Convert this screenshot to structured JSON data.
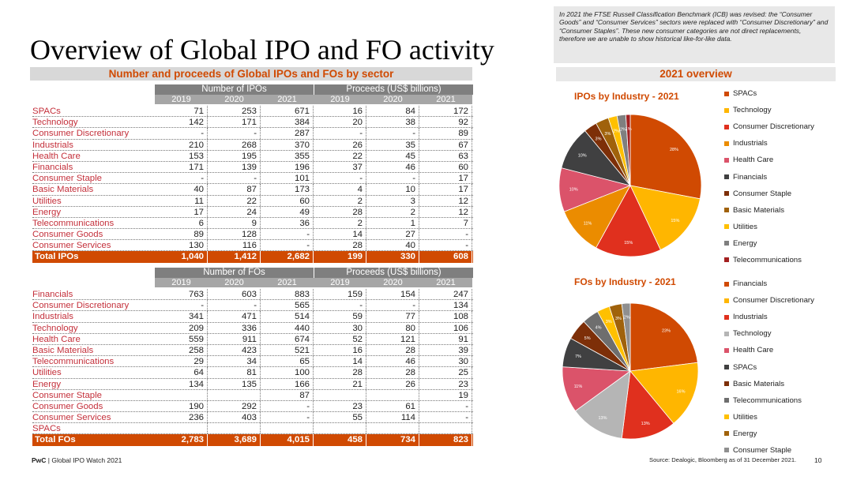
{
  "title": "Overview of Global IPO and FO activity",
  "note": "In 2021 the FTSE Russell Classification Benchmark (ICB) was revised: the “Consumer Goods” and “Consumer Services” sectors were replaced with “Consumer Discretionary” and “Consumer Staples”. These new consumer categories are not direct replacements, therefore we are unable to show historical like-for-like data.",
  "section_header": "Number and proceeds of Global IPOs and FOs by sector",
  "overview_header": "2021 overview",
  "years": [
    "2019",
    "2020",
    "2021"
  ],
  "ipo_table": {
    "group_count": "Number of IPOs",
    "group_proceeds": "Proceeds (US$ billions)",
    "rows": [
      {
        "label": "SPACs",
        "v": [
          "71",
          "253",
          "671",
          "16",
          "84",
          "172"
        ]
      },
      {
        "label": "Technology",
        "v": [
          "142",
          "171",
          "384",
          "20",
          "38",
          "92"
        ]
      },
      {
        "label": "Consumer Discretionary",
        "v": [
          "-",
          "-",
          "287",
          "-",
          "-",
          "89"
        ]
      },
      {
        "label": "Industrials",
        "v": [
          "210",
          "268",
          "370",
          "26",
          "35",
          "67"
        ]
      },
      {
        "label": "Health Care",
        "v": [
          "153",
          "195",
          "355",
          "22",
          "45",
          "63"
        ]
      },
      {
        "label": "Financials",
        "v": [
          "171",
          "139",
          "196",
          "37",
          "46",
          "60"
        ]
      },
      {
        "label": "Consumer Staple",
        "v": [
          "-",
          "-",
          "101",
          "-",
          "-",
          "17"
        ]
      },
      {
        "label": "Basic Materials",
        "v": [
          "40",
          "87",
          "173",
          "4",
          "10",
          "17"
        ]
      },
      {
        "label": "Utilities",
        "v": [
          "11",
          "22",
          "60",
          "2",
          "3",
          "12"
        ]
      },
      {
        "label": "Energy",
        "v": [
          "17",
          "24",
          "49",
          "28",
          "2",
          "12"
        ]
      },
      {
        "label": "Telecommunications",
        "v": [
          "6",
          "9",
          "36",
          "2",
          "1",
          "7"
        ]
      },
      {
        "label": "Consumer Goods",
        "v": [
          "89",
          "128",
          "-",
          "14",
          "27",
          "-"
        ]
      },
      {
        "label": "Consumer Services",
        "v": [
          "130",
          "116",
          "-",
          "28",
          "40",
          "-"
        ]
      }
    ],
    "total": {
      "label": "Total IPOs",
      "v": [
        "1,040",
        "1,412",
        "2,682",
        "199",
        "330",
        "608"
      ]
    }
  },
  "fo_table": {
    "group_count": "Number of FOs",
    "group_proceeds": "Proceeds (US$ billions)",
    "rows": [
      {
        "label": "Financials",
        "v": [
          "763",
          "603",
          "883",
          "159",
          "154",
          "247"
        ]
      },
      {
        "label": "Consumer Discretionary",
        "v": [
          "-",
          "-",
          "565",
          "-",
          "-",
          "134"
        ]
      },
      {
        "label": "Industrials",
        "v": [
          "341",
          "471",
          "514",
          "59",
          "77",
          "108"
        ]
      },
      {
        "label": "Technology",
        "v": [
          "209",
          "336",
          "440",
          "30",
          "80",
          "106"
        ]
      },
      {
        "label": "Health Care",
        "v": [
          "559",
          "911",
          "674",
          "52",
          "121",
          "91"
        ]
      },
      {
        "label": "Basic Materials",
        "v": [
          "258",
          "423",
          "521",
          "16",
          "28",
          "39"
        ]
      },
      {
        "label": "Telecommunications",
        "v": [
          "29",
          "34",
          "65",
          "14",
          "46",
          "30"
        ]
      },
      {
        "label": "Utilities",
        "v": [
          "64",
          "81",
          "100",
          "28",
          "28",
          "25"
        ]
      },
      {
        "label": "Energy",
        "v": [
          "134",
          "135",
          "166",
          "21",
          "26",
          "23"
        ]
      },
      {
        "label": "Consumer Staple",
        "v": [
          "",
          "",
          "87",
          "",
          "",
          "19"
        ]
      },
      {
        "label": "Consumer Goods",
        "v": [
          "190",
          "292",
          "-",
          "23",
          "61",
          "-"
        ]
      },
      {
        "label": "Consumer Services",
        "v": [
          "236",
          "403",
          "-",
          "55",
          "114",
          "-"
        ]
      },
      {
        "label": "SPACs",
        "v": [
          "",
          "",
          "",
          "",
          "",
          ""
        ]
      }
    ],
    "total": {
      "label": "Total FOs",
      "v": [
        "2,783",
        "3,689",
        "4,015",
        "458",
        "734",
        "823"
      ]
    }
  },
  "chart_data": [
    {
      "type": "pie",
      "title": "IPOs by Industry - 2021",
      "categories": [
        "SPACs",
        "Technology",
        "Consumer Discretionary",
        "Industrials",
        "Health Care",
        "Financials",
        "Consumer Staple",
        "Basic Materials",
        "Utilities",
        "Energy",
        "Telecommunications"
      ],
      "values": [
        28,
        15,
        15,
        11,
        10,
        10,
        3,
        3,
        2,
        2,
        1
      ],
      "labels": [
        "28%",
        "15%",
        "15%",
        "11%",
        "10%",
        "10%",
        "3%",
        "3%",
        "2%",
        "2%",
        "1%"
      ],
      "colors": [
        "#d04a02",
        "#ffb600",
        "#e0301e",
        "#eb8c00",
        "#db536a",
        "#404041",
        "#7d2f08",
        "#a0620b",
        "#ffc000",
        "#7f7f7f",
        "#a32020"
      ]
    },
    {
      "type": "pie",
      "title": "FOs by Industry - 2021",
      "categories": [
        "Financials",
        "Consumer Discretionary",
        "Industrials",
        "Technology",
        "Health Care",
        "SPACs",
        "Basic Materials",
        "Telecommunications",
        "Utilities",
        "Energy",
        "Consumer Staple"
      ],
      "values": [
        23,
        16,
        13,
        13,
        11,
        7,
        5,
        4,
        3,
        3,
        2
      ],
      "labels": [
        "23%",
        "16%",
        "13%",
        "13%",
        "11%",
        "7%",
        "5%",
        "4%",
        "3%",
        "3%",
        "2%"
      ],
      "colors": [
        "#d04a02",
        "#ffb600",
        "#e0301e",
        "#b5b5b5",
        "#db536a",
        "#404041",
        "#7d2f08",
        "#6e6e6e",
        "#ffc000",
        "#a0620b",
        "#8f8f8f"
      ]
    }
  ],
  "footer": {
    "brand": "PwC",
    "text": " | Global IPO Watch 2021"
  },
  "source": "Source: Dealogic, Bloomberg as of 31 December 2021.",
  "page_number": "10"
}
